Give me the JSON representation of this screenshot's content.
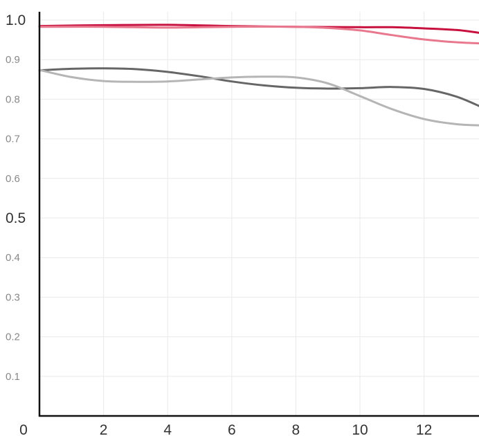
{
  "chart_data": {
    "type": "line",
    "title": "",
    "xlabel": "",
    "ylabel": "",
    "xlim": [
      0,
      13.8
    ],
    "ylim": [
      0,
      1.0
    ],
    "grid": true,
    "x_ticks": [
      {
        "value": 0,
        "label": "0"
      },
      {
        "value": 2,
        "label": "2"
      },
      {
        "value": 4,
        "label": "4"
      },
      {
        "value": 6,
        "label": "6"
      },
      {
        "value": 8,
        "label": "8"
      },
      {
        "value": 10,
        "label": "10"
      },
      {
        "value": 12,
        "label": "12"
      }
    ],
    "y_ticks": [
      {
        "value": 1.0,
        "label": "1.0",
        "major": true
      },
      {
        "value": 0.9,
        "label": "0.9",
        "major": false
      },
      {
        "value": 0.8,
        "label": "0.8",
        "major": false
      },
      {
        "value": 0.7,
        "label": "0.7",
        "major": false
      },
      {
        "value": 0.6,
        "label": "0.6",
        "major": false
      },
      {
        "value": 0.5,
        "label": "0.5",
        "major": true
      },
      {
        "value": 0.4,
        "label": "0.4",
        "major": false
      },
      {
        "value": 0.3,
        "label": "0.3",
        "major": false
      },
      {
        "value": 0.2,
        "label": "0.2",
        "major": false
      },
      {
        "value": 0.1,
        "label": "0.1",
        "major": false
      }
    ],
    "series": [
      {
        "color": "#c8103e",
        "stroke_width": 3,
        "x": [
          0,
          2,
          4,
          6,
          8,
          10,
          11,
          12,
          13,
          13.8
        ],
        "y": [
          0.985,
          0.987,
          0.988,
          0.985,
          0.983,
          0.982,
          0.982,
          0.979,
          0.975,
          0.967
        ]
      },
      {
        "color": "#e8788e",
        "stroke_width": 3,
        "x": [
          0,
          2,
          4,
          6,
          8,
          9,
          10,
          11,
          12,
          13,
          13.8
        ],
        "y": [
          0.983,
          0.983,
          0.981,
          0.983,
          0.983,
          0.98,
          0.974,
          0.962,
          0.951,
          0.944,
          0.941
        ]
      },
      {
        "color": "#666666",
        "stroke_width": 3,
        "x": [
          0,
          1,
          2,
          3,
          4,
          5,
          6,
          7,
          8,
          9,
          10,
          11,
          12,
          13,
          13.8
        ],
        "y": [
          0.873,
          0.877,
          0.878,
          0.876,
          0.869,
          0.858,
          0.845,
          0.835,
          0.829,
          0.827,
          0.828,
          0.831,
          0.826,
          0.807,
          0.78
        ]
      },
      {
        "color": "#b5b5b5",
        "stroke_width": 3,
        "x": [
          0,
          1,
          2,
          3,
          4,
          5,
          6,
          7,
          8,
          9,
          10,
          11,
          12,
          13,
          13.8
        ],
        "y": [
          0.874,
          0.856,
          0.846,
          0.844,
          0.845,
          0.85,
          0.855,
          0.857,
          0.855,
          0.84,
          0.808,
          0.775,
          0.75,
          0.737,
          0.734
        ]
      }
    ]
  }
}
